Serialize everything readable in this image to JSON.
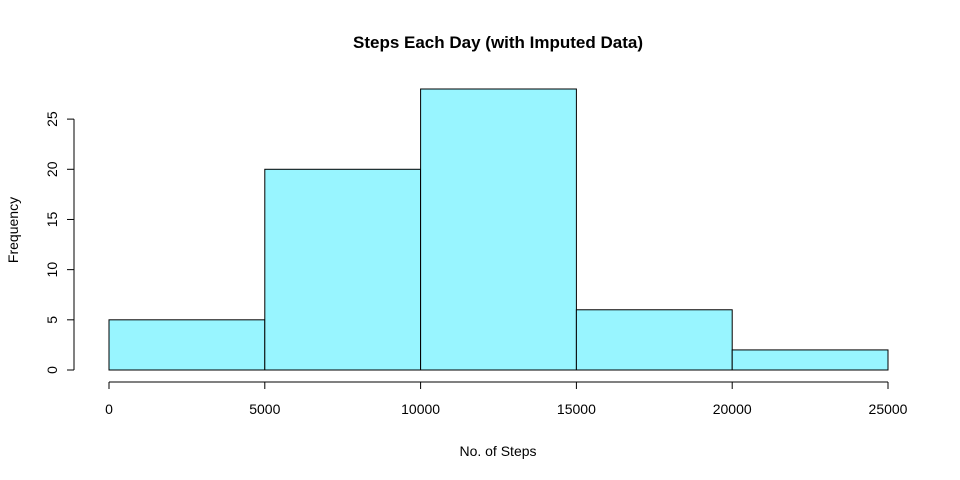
{
  "chart_data": {
    "type": "bar",
    "title": "Steps Each Day (with Imputed Data)",
    "xlabel": "No. of Steps",
    "ylabel": "Frequency",
    "bins": [
      {
        "x0": 0,
        "x1": 5000,
        "count": 5
      },
      {
        "x0": 5000,
        "x1": 10000,
        "count": 20
      },
      {
        "x0": 10000,
        "x1": 15000,
        "count": 28
      },
      {
        "x0": 15000,
        "x1": 20000,
        "count": 6
      },
      {
        "x0": 20000,
        "x1": 25000,
        "count": 2
      }
    ],
    "xlim": [
      0,
      25000
    ],
    "ylim": [
      0,
      28
    ],
    "xticks": [
      0,
      5000,
      10000,
      15000,
      20000,
      25000
    ],
    "xtick_labels": [
      "0",
      "5000",
      "10000",
      "15000",
      "20000",
      "25000"
    ],
    "yticks": [
      0,
      5,
      10,
      15,
      20,
      25
    ],
    "ytick_labels": [
      "0",
      "5",
      "10",
      "15",
      "20",
      "25"
    ],
    "bar_color": "#98f5ff",
    "grid": false,
    "legend": "none"
  }
}
